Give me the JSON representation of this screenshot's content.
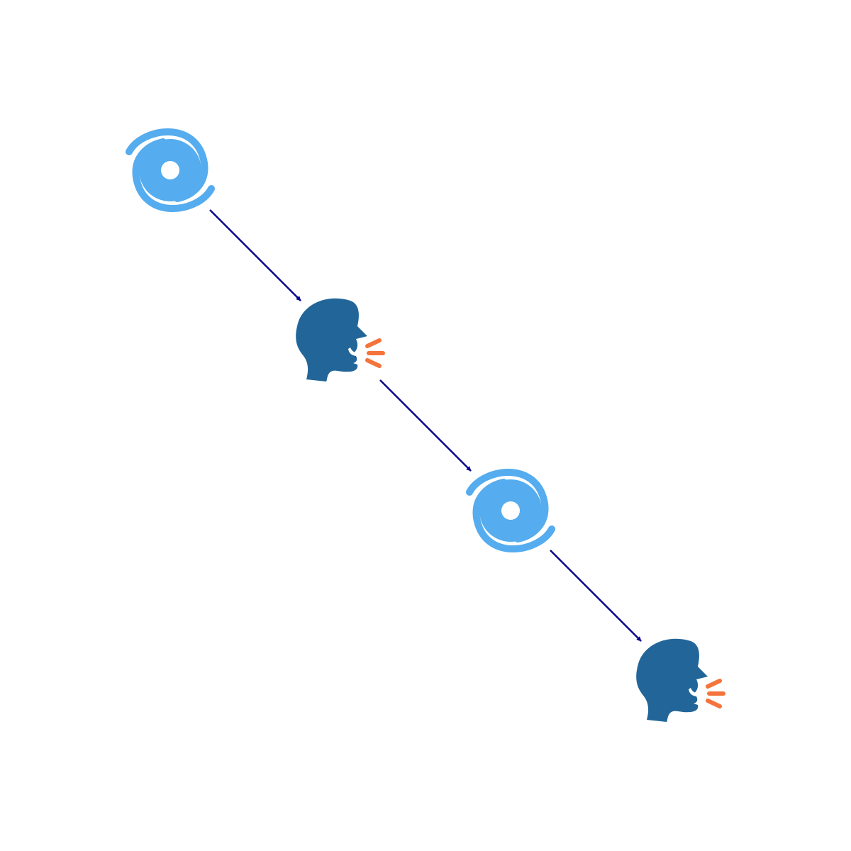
{
  "diagram": {
    "type": "flow",
    "nodes": [
      {
        "id": "n1",
        "icon": "cyclone-icon"
      },
      {
        "id": "n2",
        "icon": "speaking-head-icon"
      },
      {
        "id": "n3",
        "icon": "cyclone-icon"
      },
      {
        "id": "n4",
        "icon": "speaking-head-icon"
      }
    ],
    "edges": [
      {
        "from": "n1",
        "to": "n2"
      },
      {
        "from": "n2",
        "to": "n3"
      },
      {
        "from": "n3",
        "to": "n4"
      }
    ]
  },
  "colors": {
    "background": "#ffffff",
    "edge": "#00008b",
    "cyclone": "#55acee",
    "head": "#226699",
    "sound_waves": "#f4743b"
  }
}
